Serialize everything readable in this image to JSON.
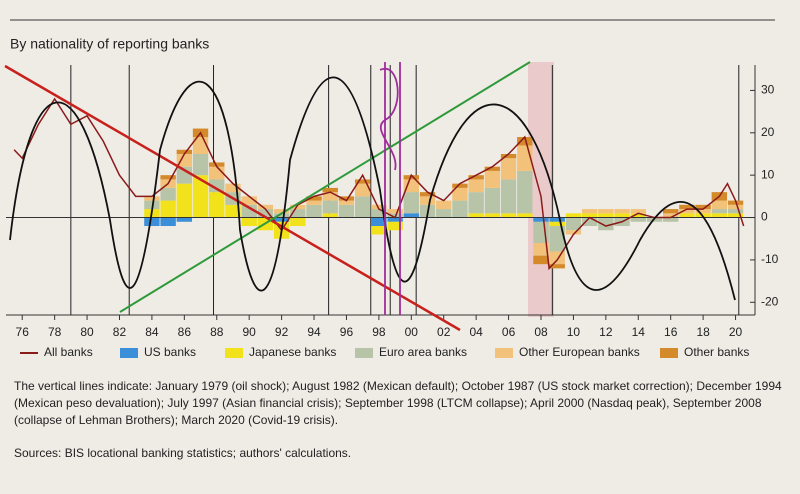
{
  "chart_data": {
    "type": "bar",
    "title": "By nationality of reporting banks",
    "xlim": [
      1975,
      2021.2
    ],
    "ylim": [
      -23,
      36
    ],
    "xticks": [
      {
        "value": 1976,
        "label": "76"
      },
      {
        "value": 1978,
        "label": "78"
      },
      {
        "value": 1980,
        "label": "80"
      },
      {
        "value": 1982,
        "label": "82"
      },
      {
        "value": 1984,
        "label": "84"
      },
      {
        "value": 1986,
        "label": "86"
      },
      {
        "value": 1988,
        "label": "88"
      },
      {
        "value": 1990,
        "label": "90"
      },
      {
        "value": 1992,
        "label": "92"
      },
      {
        "value": 1994,
        "label": "94"
      },
      {
        "value": 1996,
        "label": "96"
      },
      {
        "value": 1998,
        "label": "98"
      },
      {
        "value": 2000,
        "label": "00"
      },
      {
        "value": 2002,
        "label": "02"
      },
      {
        "value": 2004,
        "label": "04"
      },
      {
        "value": 2006,
        "label": "06"
      },
      {
        "value": 2008,
        "label": "08"
      },
      {
        "value": 2010,
        "label": "10"
      },
      {
        "value": 2012,
        "label": "12"
      },
      {
        "value": 2014,
        "label": "14"
      },
      {
        "value": 2016,
        "label": "16"
      },
      {
        "value": 2018,
        "label": "18"
      },
      {
        "value": 2020,
        "label": "20"
      }
    ],
    "yticks": [
      -20,
      -10,
      0,
      10,
      20,
      30
    ],
    "event_lines": [
      1979.0,
      1982.6,
      1987.8,
      1994.9,
      1997.5,
      1998.7,
      2000.3,
      2008.7,
      2020.2
    ],
    "x": [
      1984,
      1985,
      1986,
      1987,
      1988,
      1989,
      1990,
      1991,
      1992,
      1993,
      1994,
      1995,
      1996,
      1997,
      1998,
      1999,
      2000,
      2001,
      2002,
      2003,
      2004,
      2005,
      2006,
      2007,
      2008,
      2009,
      2010,
      2011,
      2012,
      2013,
      2014,
      2015,
      2016,
      2017,
      2018,
      2019,
      2020
    ],
    "line": {
      "name": "All banks",
      "color": "#8b1a1a",
      "x": [
        1975.5,
        1976,
        1977,
        1978,
        1979,
        1980,
        1981,
        1982,
        1983,
        1984,
        1985,
        1986,
        1987,
        1988,
        1989,
        1990,
        1991,
        1992,
        1993,
        1994,
        1995,
        1996,
        1997,
        1998,
        1999,
        2000,
        2001,
        2002,
        2003,
        2004,
        2005,
        2006,
        2007,
        2008,
        2008.5,
        2009,
        2010,
        2011,
        2012,
        2013,
        2014,
        2015,
        2016,
        2017,
        2018,
        2019,
        2019.5,
        2020,
        2020.5
      ],
      "values": [
        16,
        14,
        22,
        28,
        22,
        24,
        18,
        10,
        5,
        5,
        8,
        15,
        20,
        12,
        8,
        5,
        2,
        -3,
        3,
        5,
        6,
        4,
        10,
        2,
        0,
        10,
        6,
        4,
        8,
        10,
        12,
        15,
        19,
        5,
        -12,
        -10,
        -4,
        0,
        -2,
        -1,
        1,
        0,
        0,
        2,
        2,
        5,
        8,
        4,
        -2
      ]
    },
    "series": [
      {
        "name": "US banks",
        "color": "#3a8fd8",
        "values": [
          -2,
          -2,
          -1,
          0,
          0,
          0,
          0,
          0,
          -1,
          0,
          0,
          0,
          0,
          0,
          -2,
          -1,
          1,
          0,
          0,
          0,
          0,
          0,
          0,
          0,
          -1,
          -1,
          0,
          0,
          0,
          0,
          0,
          0,
          0,
          0,
          0,
          0,
          0
        ]
      },
      {
        "name": "Japanese banks",
        "color": "#f2e21b",
        "values": [
          2,
          4,
          8,
          10,
          6,
          3,
          -2,
          -3,
          -4,
          -2,
          0,
          1,
          0,
          0,
          -2,
          -2,
          0,
          0,
          0,
          0,
          1,
          1,
          1,
          1,
          0,
          -1,
          1,
          1,
          1,
          1,
          1,
          0,
          0,
          1,
          1,
          1,
          1
        ]
      },
      {
        "name": "Euro area banks",
        "color": "#b8c4a8",
        "values": [
          2,
          3,
          4,
          5,
          3,
          3,
          3,
          2,
          1,
          2,
          3,
          3,
          3,
          5,
          2,
          1,
          5,
          3,
          2,
          4,
          5,
          6,
          8,
          10,
          -5,
          -6,
          -3,
          -2,
          -3,
          -2,
          -1,
          -1,
          -1,
          0,
          0,
          1,
          1
        ]
      },
      {
        "name": "Other European banks",
        "color": "#f2c27a",
        "values": [
          1,
          2,
          3,
          4,
          3,
          2,
          2,
          1,
          1,
          1,
          1,
          2,
          1,
          3,
          1,
          1,
          3,
          2,
          2,
          3,
          3,
          4,
          5,
          6,
          -3,
          -3,
          -1,
          1,
          1,
          1,
          1,
          0,
          1,
          1,
          1,
          2,
          1
        ]
      },
      {
        "name": "Other banks",
        "color": "#d48a2a",
        "values": [
          0,
          1,
          1,
          2,
          1,
          0,
          0,
          0,
          0,
          0,
          1,
          1,
          1,
          1,
          0,
          0,
          1,
          1,
          0,
          1,
          1,
          1,
          1,
          2,
          -2,
          -1,
          0,
          0,
          0,
          0,
          0,
          0,
          1,
          1,
          1,
          2,
          1
        ]
      }
    ],
    "note": "The vertical lines indicate: January 1979 (oil shock); August 1982 (Mexican default); October 1987 (US stock market correction); December 1994 (Mexican peso devaluation); July 1997 (Asian financial crisis); September 1998 (LTCM collapse); April 2000 (Nasdaq peak), September 2008 (collapse of Lehman Brothers); March 2020 (Covid-19 crisis).",
    "sources": "Sources: BIS locational banking statistics; authors' calculations."
  }
}
